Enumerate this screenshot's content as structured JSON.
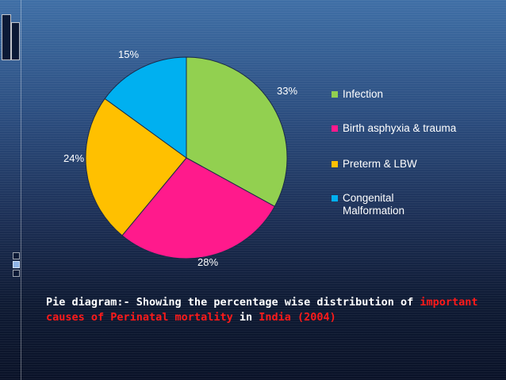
{
  "chart_data": {
    "type": "pie",
    "categories": [
      "Infection",
      "Birth asphyxia & trauma",
      "Preterm & LBW",
      "Congenital Malformation"
    ],
    "values": [
      33,
      28,
      24,
      15
    ],
    "data_labels": [
      "33%",
      "28%",
      "24%",
      "15%"
    ],
    "colors": [
      "#92d050",
      "#ff1a8c",
      "#ffc000",
      "#00b0f0"
    ],
    "legend_position": "right",
    "title": "",
    "xlabel": "",
    "ylabel": ""
  },
  "caption": {
    "part1": "Pie diagram:- Showing the percentage wise distribution of ",
    "highlight1": "important causes of Perinatal mortality",
    "part2": " in ",
    "highlight2": "India (2004)"
  },
  "colors": {
    "caption_text": "#ffffff",
    "caption_highlight": "#ff1a1a"
  }
}
